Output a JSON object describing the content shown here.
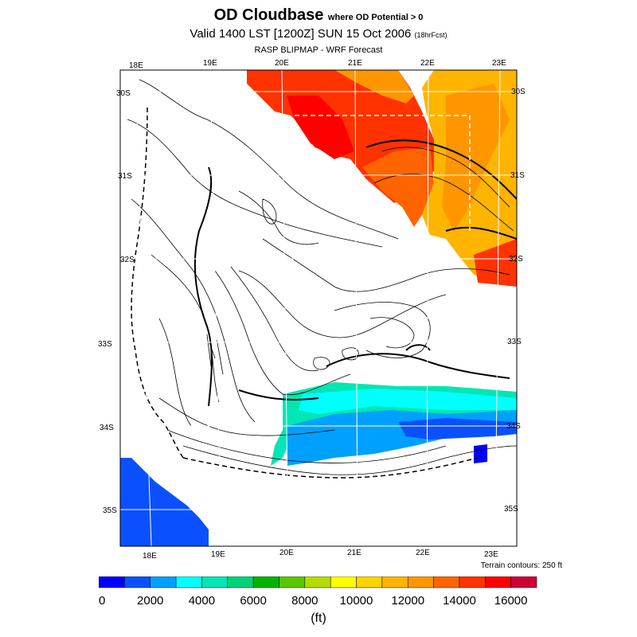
{
  "title": {
    "main": "OD Cloudbase",
    "qualifier": "where OD Potential > 0"
  },
  "valid": {
    "text": "Valid 1400 LST [1200Z] SUN 15 Oct 2006",
    "forecast": "(18hrFcst)"
  },
  "model": "RASP BLIPMAP - WRF Forecast",
  "grid": {
    "top_labels": [
      "18E",
      "19E",
      "20E",
      "21E",
      "22E",
      "23E"
    ],
    "bottom_labels": [
      "18E",
      "19E",
      "20E",
      "21E",
      "22E",
      "23E"
    ],
    "left_labels": [
      "30S",
      "31S",
      "32S",
      "33S",
      "34S",
      "35S"
    ],
    "right_labels": [
      "30S",
      "31S",
      "32S",
      "33S",
      "34S",
      "35S"
    ]
  },
  "terrain_note": "Terrain contours: 250 ft",
  "colorbar": {
    "colors": [
      "#0000ff",
      "#0a50ff",
      "#00a0ff",
      "#00ffff",
      "#00e6b4",
      "#00d278",
      "#00b400",
      "#5ac800",
      "#b4dc00",
      "#ffff00",
      "#ffd200",
      "#ffb400",
      "#ff9600",
      "#ff6400",
      "#ff3200",
      "#ff0000",
      "#cc0033"
    ],
    "tick_labels": [
      "0",
      "2000",
      "4000",
      "6000",
      "8000",
      "10000",
      "12000",
      "14000",
      "16000"
    ],
    "units": "(ft)"
  },
  "chart_data": {
    "type": "heatmap",
    "title": "OD Cloudbase",
    "subtitle": "Valid 1400 LST [1200Z] SUN 15 Oct 2006",
    "value_range": [
      0,
      17000
    ],
    "value_step": 1000,
    "units": "ft",
    "regions": [
      {
        "area": "north-central (20E-22E, 30S-31S)",
        "approx_value": 15000
      },
      {
        "area": "north-east (22E-23E, 30S-32S)",
        "approx_value": 13000
      },
      {
        "area": "south coast band (20E-23E, 33.5S-34S)",
        "approx_value": 3500
      },
      {
        "area": "south-west corner (18E-19E, 34.5S-35S)",
        "approx_value": 1500
      }
    ]
  }
}
